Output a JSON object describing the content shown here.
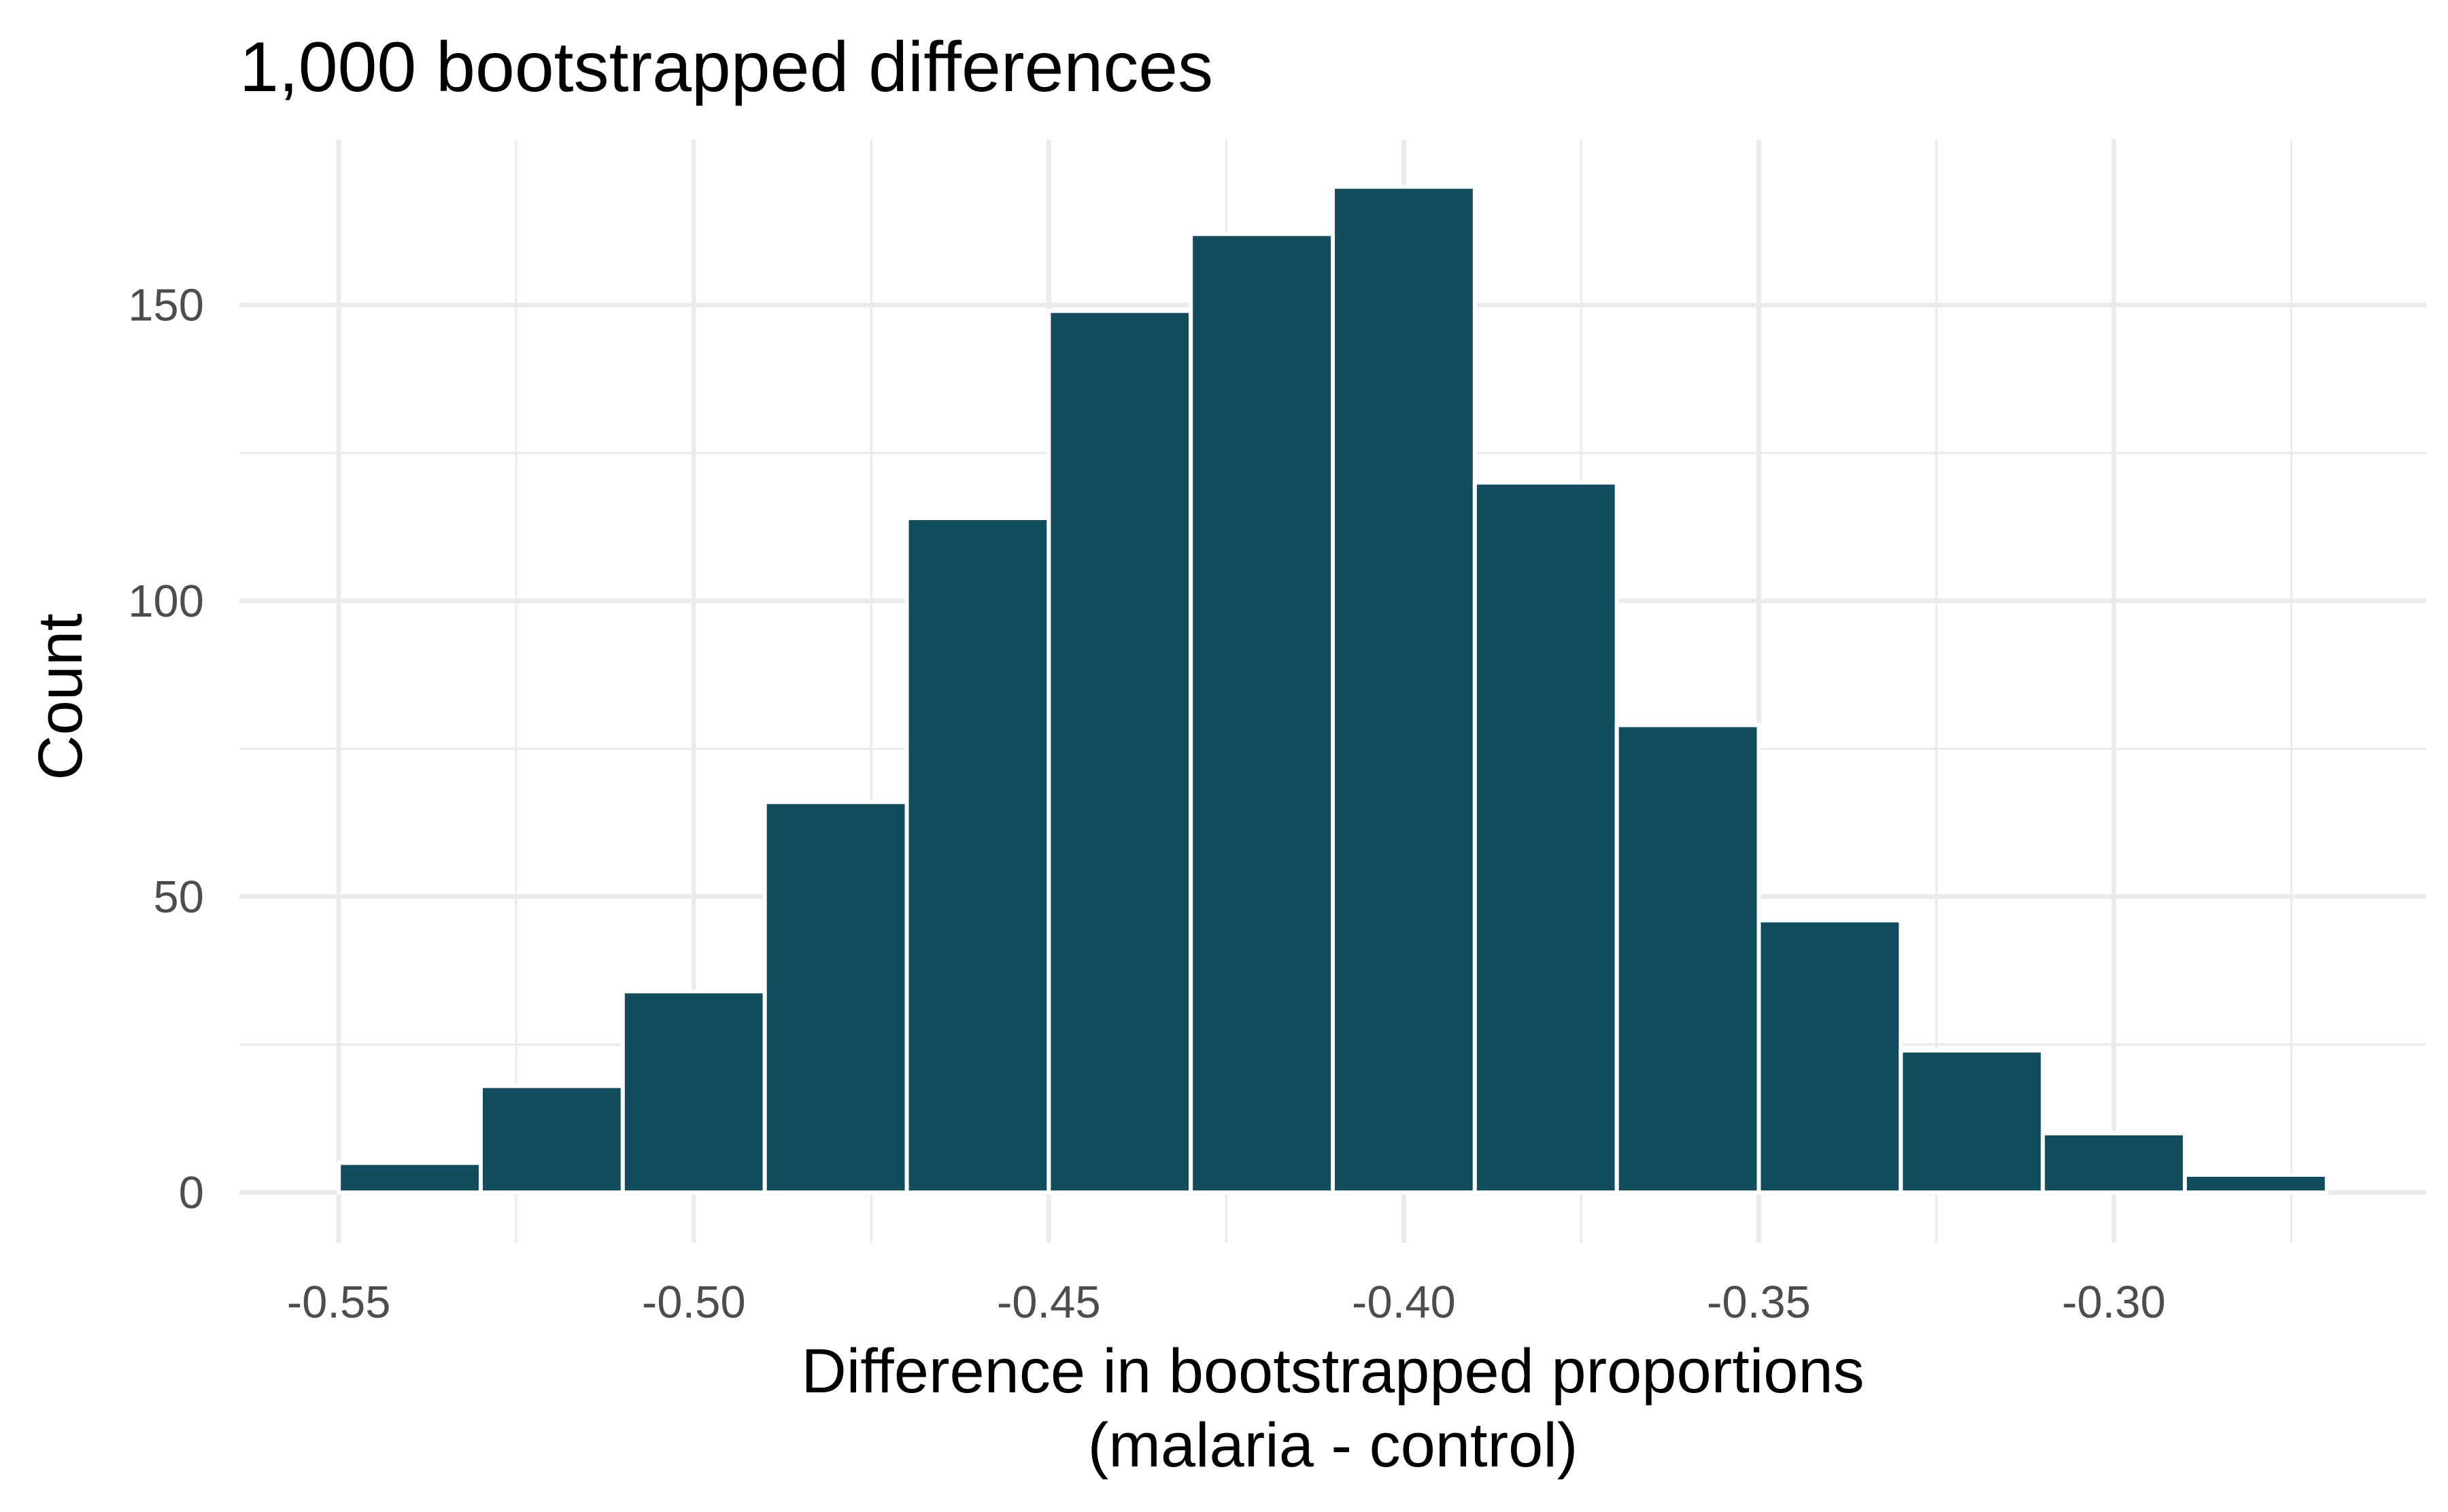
{
  "chart_data": {
    "type": "bar",
    "title": "1,000 bootstrapped differences",
    "xlabel": "Difference in bootstrapped proportions",
    "xlabel_line2": "(malaria - control)",
    "ylabel": "Count",
    "bar_color": "#124c5f",
    "grid_color": "#ebebeb",
    "xlim": [
      -0.564,
      -0.256
    ],
    "ylim": [
      -8.5,
      178
    ],
    "x_ticks": [
      -0.55,
      -0.5,
      -0.45,
      -0.4,
      -0.35,
      -0.3
    ],
    "x_tick_labels": [
      "-0.55",
      "-0.50",
      "-0.45",
      "-0.40",
      "-0.35",
      "-0.30"
    ],
    "x_minor_ticks": [
      -0.525,
      -0.475,
      -0.425,
      -0.375,
      -0.325,
      -0.275
    ],
    "y_ticks": [
      0,
      50,
      100,
      150
    ],
    "y_tick_labels": [
      "0",
      "50",
      "100",
      "150"
    ],
    "y_minor_ticks": [
      25,
      75,
      125
    ],
    "bins": [
      {
        "x0": -0.55,
        "x1": -0.53,
        "count": 5
      },
      {
        "x0": -0.53,
        "x1": -0.51,
        "count": 18
      },
      {
        "x0": -0.51,
        "x1": -0.49,
        "count": 34
      },
      {
        "x0": -0.49,
        "x1": -0.47,
        "count": 66
      },
      {
        "x0": -0.47,
        "x1": -0.45,
        "count": 114
      },
      {
        "x0": -0.45,
        "x1": -0.43,
        "count": 149
      },
      {
        "x0": -0.43,
        "x1": -0.41,
        "count": 162
      },
      {
        "x0": -0.41,
        "x1": -0.39,
        "count": 170
      },
      {
        "x0": -0.39,
        "x1": -0.37,
        "count": 120
      },
      {
        "x0": -0.37,
        "x1": -0.35,
        "count": 79
      },
      {
        "x0": -0.35,
        "x1": -0.33,
        "count": 46
      },
      {
        "x0": -0.33,
        "x1": -0.31,
        "count": 24
      },
      {
        "x0": -0.31,
        "x1": -0.29,
        "count": 10
      },
      {
        "x0": -0.29,
        "x1": -0.27,
        "count": 3
      }
    ]
  }
}
